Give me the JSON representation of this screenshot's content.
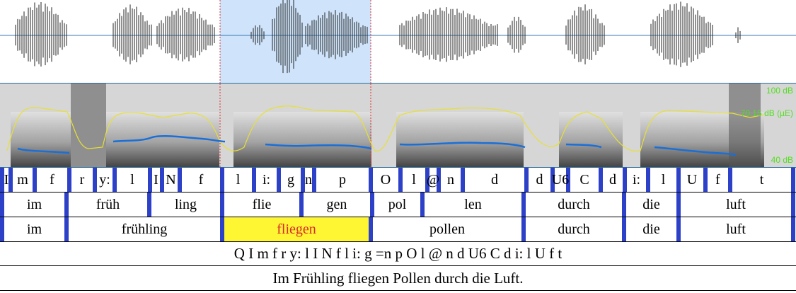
{
  "colors": {
    "selection": "#cfe4fb",
    "boundary": "#2d40c8",
    "highlight_word_bg": "#fff633",
    "highlight_word_text": "#d62a2a",
    "intensity_curve": "#e8e033",
    "pitch_curve": "#1a6fd8",
    "db_label": "#55dd22"
  },
  "spectrogram": {
    "db_labels": [
      "100 dB",
      "70.15 dB (µE)",
      "40 dB"
    ]
  },
  "phones": [
    "I",
    "m",
    "f",
    "r",
    "y:",
    "l",
    "I",
    "N",
    "f",
    "l",
    "i:",
    "g",
    "n",
    "p",
    "O",
    "l",
    "@",
    "n",
    "d",
    "d",
    "U6",
    "C",
    "d",
    "i:",
    "l",
    "U",
    "f",
    "t"
  ],
  "syllables": [
    "im",
    "früh",
    "ling",
    "flie",
    "gen",
    "pol",
    "len",
    "durch",
    "die",
    "luft"
  ],
  "words": [
    "im",
    "frühling",
    "fliegen",
    "pollen",
    "durch",
    "die",
    "luft"
  ],
  "selected_word": "fliegen",
  "canonical": "Q I m   f r y: l I N   f l i: g =n   p O l @ n   d U6 C   d i:   l U f t",
  "sentence": "Im Frühling fliegen Pollen durch die Luft."
}
